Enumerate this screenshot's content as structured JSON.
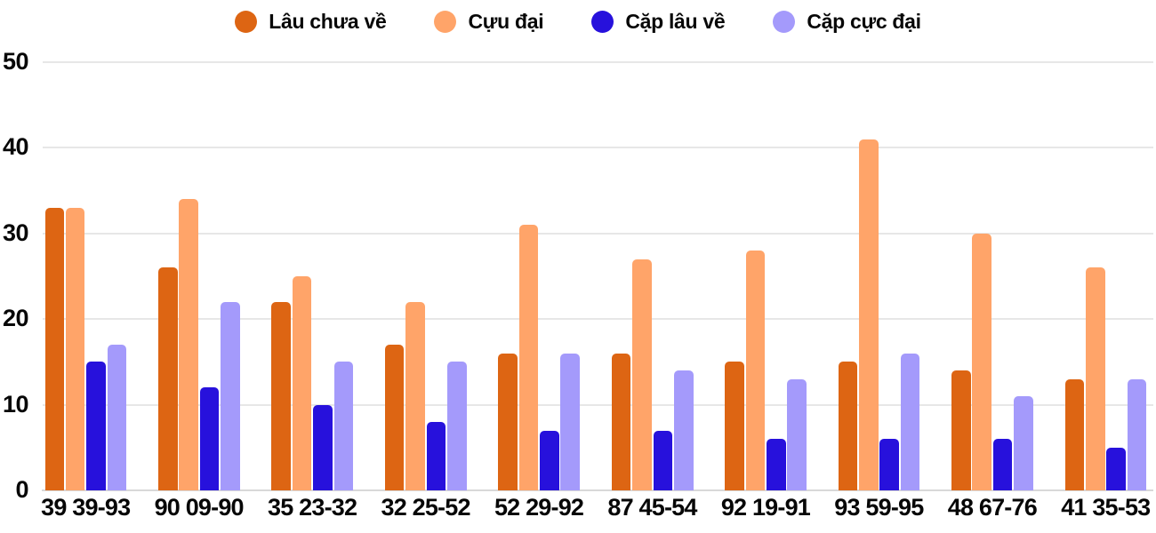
{
  "chart_data": {
    "type": "bar",
    "title": "",
    "xlabel": "",
    "ylabel": "",
    "categories": [
      "39 39-93",
      "90 09-90",
      "35 23-32",
      "32 25-52",
      "52 29-92",
      "87 45-54",
      "92 19-91",
      "93 59-95",
      "48 67-76",
      "41 35-53"
    ],
    "series": [
      {
        "name": "Lâu chưa về",
        "color": "#DD6513",
        "values": [
          33,
          26,
          22,
          17,
          16,
          16,
          15,
          15,
          14,
          13
        ]
      },
      {
        "name": "Cựu đại",
        "color": "#FFA469",
        "values": [
          33,
          34,
          25,
          22,
          31,
          27,
          28,
          41,
          30,
          26
        ]
      },
      {
        "name": "Cặp lâu về",
        "color": "#2711DC",
        "values": [
          15,
          12,
          10,
          8,
          7,
          7,
          6,
          6,
          6,
          5
        ]
      },
      {
        "name": "Cặp cực đại",
        "color": "#A49AFB",
        "values": [
          17,
          22,
          15,
          15,
          16,
          14,
          13,
          16,
          11,
          13
        ]
      }
    ],
    "ylim": [
      0,
      50
    ],
    "yticks": [
      0,
      10,
      20,
      30,
      40,
      50
    ],
    "grid": true,
    "legend_position": "top",
    "background_color": "#ffffff",
    "grid_color": "#E7E7E7",
    "axis_line_color": "#D8D8D8",
    "label_color": "#070707"
  }
}
